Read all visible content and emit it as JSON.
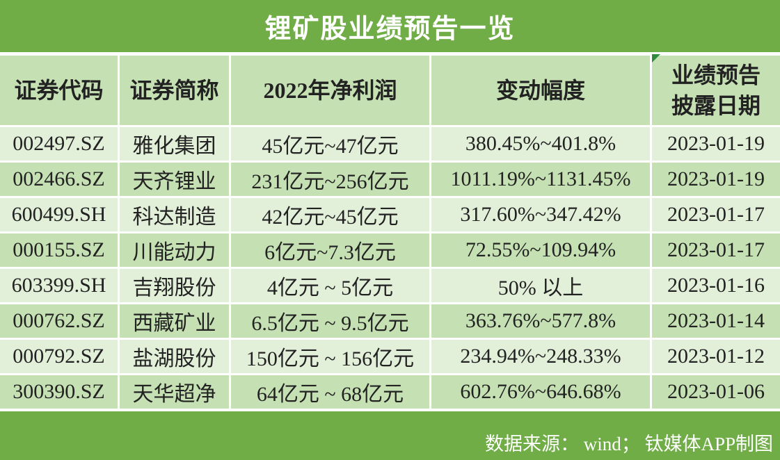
{
  "title": "锂矿股业绩预告一览",
  "table": {
    "header": [
      "证券代码",
      "证券简称",
      "2022年净利润",
      "变动幅度",
      "业绩预告\n披露日期"
    ],
    "rows": [
      [
        "002497.SZ",
        "雅化集团",
        "45亿元~47亿元",
        "380.45%~401.8%",
        "2023-01-19"
      ],
      [
        "002466.SZ",
        "天齐锂业",
        "231亿元~256亿元",
        "1011.19%~1131.45%",
        "2023-01-19"
      ],
      [
        "600499.SH",
        "科达制造",
        "42亿元~45亿元",
        "317.60%~347.42%",
        "2023-01-17"
      ],
      [
        "000155.SZ",
        "川能动力",
        "6亿元~7.3亿元",
        "72.55%~109.94%",
        "2023-01-17"
      ],
      [
        "603399.SH",
        "吉翔股份",
        "4亿元 ~ 5亿元",
        "50% 以上",
        "2023-01-16"
      ],
      [
        "000762.SZ",
        "西藏矿业",
        "6.5亿元 ~ 9.5亿元",
        "363.76%~577.8%",
        "2023-01-14"
      ],
      [
        "000792.SZ",
        "盐湖股份",
        "150亿元 ~ 156亿元",
        "234.94%~248.33%",
        "2023-01-12"
      ],
      [
        "300390.SZ",
        "天华超净",
        "64亿元 ~ 68亿元",
        "602.76%~646.68%",
        "2023-01-06"
      ]
    ]
  },
  "source": "数据来源： wind； 钛媒体APP制图"
}
